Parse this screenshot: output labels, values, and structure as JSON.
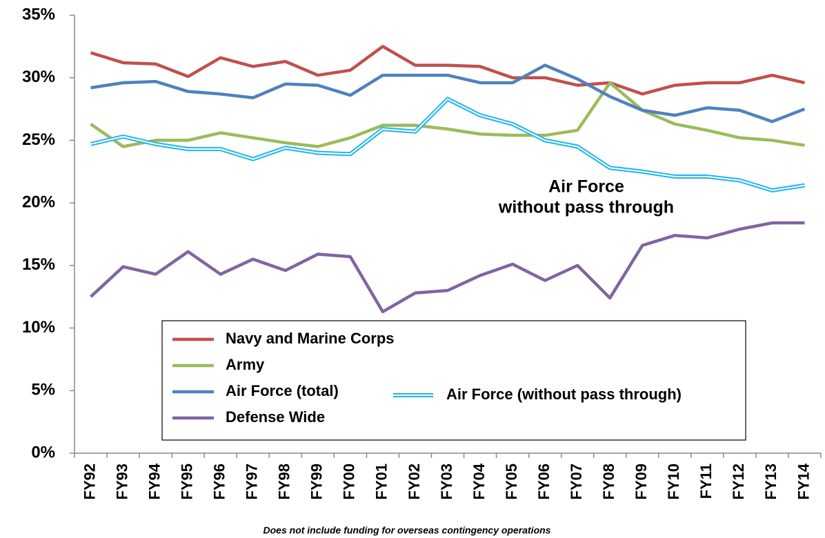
{
  "chart_data": {
    "type": "line",
    "categories": [
      "FY92",
      "FY93",
      "FY94",
      "FY95",
      "FY96",
      "FY97",
      "FY98",
      "FY99",
      "FY00",
      "FY01",
      "FY02",
      "FY03",
      "FY04",
      "FY05",
      "FY06",
      "FY07",
      "FY08",
      "FY09",
      "FY10",
      "FY11",
      "FY12",
      "FY13",
      "FY14"
    ],
    "series": [
      {
        "name": "Navy and Marine Corps",
        "color": "#c0504d",
        "values": [
          32.0,
          31.2,
          31.1,
          30.1,
          31.6,
          30.9,
          31.3,
          30.2,
          30.6,
          32.5,
          31.0,
          31.0,
          30.9,
          30.0,
          30.0,
          29.4,
          29.6,
          28.7,
          29.4,
          29.6,
          29.6,
          30.2,
          29.6
        ]
      },
      {
        "name": "Army",
        "color": "#9bbb59",
        "values": [
          26.3,
          24.5,
          25.0,
          25.0,
          25.6,
          25.2,
          24.8,
          24.5,
          25.2,
          26.2,
          26.2,
          25.9,
          25.5,
          25.4,
          25.4,
          25.8,
          29.6,
          27.4,
          26.3,
          25.8,
          25.2,
          25.0,
          24.6
        ]
      },
      {
        "name": "Air Force (total)",
        "color": "#4f81bd",
        "values": [
          29.2,
          29.6,
          29.7,
          28.9,
          28.7,
          28.4,
          29.5,
          29.4,
          28.6,
          30.2,
          30.2,
          30.2,
          29.6,
          29.6,
          31.0,
          29.9,
          28.5,
          27.4,
          27.0,
          27.6,
          27.4,
          26.5,
          27.5
        ]
      },
      {
        "name": "Air Force (without pass through)",
        "color": "#1eb4ef",
        "double": true,
        "values": [
          24.7,
          25.3,
          24.7,
          24.3,
          24.3,
          23.5,
          24.4,
          24.0,
          23.9,
          25.9,
          25.7,
          28.3,
          27.0,
          26.3,
          25.0,
          24.5,
          22.8,
          22.5,
          22.1,
          22.1,
          21.8,
          21.0,
          21.4
        ]
      },
      {
        "name": "Defense Wide",
        "color": "#8064a2",
        "values": [
          12.5,
          14.9,
          14.3,
          16.1,
          14.3,
          15.5,
          14.6,
          15.9,
          15.7,
          11.3,
          12.8,
          13.0,
          14.2,
          15.1,
          13.8,
          15.0,
          12.4,
          16.6,
          17.4,
          17.2,
          17.9,
          18.4,
          18.4
        ]
      }
    ],
    "ylim": [
      0,
      35
    ],
    "yticks": [
      {
        "value": 0,
        "label": "0%"
      },
      {
        "value": 5,
        "label": "5%"
      },
      {
        "value": 10,
        "label": "10%"
      },
      {
        "value": 15,
        "label": "15%"
      },
      {
        "value": 20,
        "label": "20%"
      },
      {
        "value": 25,
        "label": "25%"
      },
      {
        "value": 30,
        "label": "30%"
      },
      {
        "value": 35,
        "label": "35%"
      }
    ],
    "grid": false,
    "legend": "lower center",
    "annotation": [
      "Air Force",
      "without pass through"
    ],
    "note": "Does not include funding for overseas contingency operations"
  }
}
